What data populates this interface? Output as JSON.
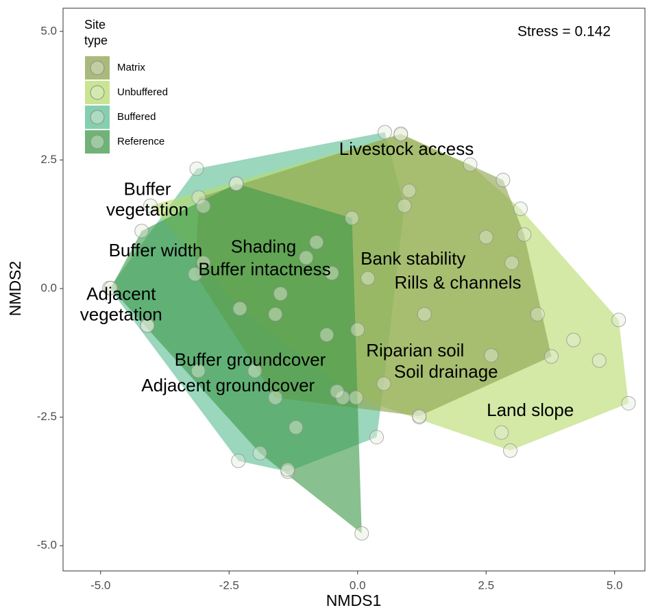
{
  "chart_data": {
    "type": "scatter",
    "x_label": "NMDS1",
    "y_label": "NMDS2",
    "stress_label": "Stress = 0.142",
    "legend_title": [
      "Site",
      "type"
    ],
    "legend_position": "top-left",
    "xlim": [
      -5.73,
      5.59
    ],
    "ylim": [
      -5.49,
      5.45
    ],
    "xticks": [
      {
        "value": -5,
        "label": "-5.0"
      },
      {
        "value": -2.5,
        "label": "-2.5"
      },
      {
        "value": 0,
        "label": "0.0"
      },
      2.5,
      {
        "value": 5,
        "label": "5.0"
      }
    ],
    "yticks": [
      {
        "value": -5,
        "label": "-5.0"
      },
      {
        "value": -2.5,
        "label": "-2.5"
      },
      {
        "value": 0,
        "label": "0.0"
      },
      2.5,
      {
        "value": 5,
        "label": "5.0"
      }
    ],
    "series": [
      {
        "name": "Buffered",
        "color": "#5cbf94",
        "x": [
          -3.13,
          0.53,
          0.91,
          0.51,
          0.37,
          -1.36,
          -2.32,
          -4.09,
          -4.83,
          -3.0,
          -1.5,
          -0.6,
          -2.0,
          0.0,
          -0.8
        ],
        "y": [
          2.33,
          3.04,
          1.61,
          -1.85,
          -2.89,
          -3.56,
          -3.35,
          -0.72,
          0.01,
          0.5,
          -0.1,
          -0.9,
          -1.6,
          -0.8,
          0.9
        ]
      },
      {
        "name": "Unbuffered",
        "color": "#b8dc6e",
        "x": [
          0.84,
          2.19,
          3.17,
          5.08,
          5.27,
          2.97,
          1.2,
          -4.03,
          -2.36,
          -2.29,
          -0.03,
          4.2,
          3.5,
          2.8,
          4.7,
          3.0
        ],
        "y": [
          2.99,
          2.41,
          1.55,
          -0.61,
          -2.23,
          -3.15,
          -2.5,
          1.61,
          2.04,
          -0.39,
          -2.12,
          -1.0,
          -0.5,
          -2.8,
          -1.4,
          0.5
        ]
      },
      {
        "name": "Matrix",
        "color": "#8da34f",
        "x": [
          0.84,
          2.83,
          3.24,
          3.77,
          1.2,
          -0.29,
          -3.09,
          -3.16,
          1.0,
          2.5,
          1.3,
          0.2,
          -1.0,
          2.6,
          -1.6
        ],
        "y": [
          3.01,
          2.11,
          1.05,
          -1.32,
          -2.48,
          -2.12,
          1.77,
          0.28,
          1.9,
          1.0,
          -0.5,
          0.2,
          0.6,
          -1.3,
          -2.12
        ]
      },
      {
        "name": "Reference",
        "color": "#3f9a4a",
        "x": [
          -2.36,
          -4.2,
          -4.8,
          -4.09,
          -1.36,
          0.08,
          -0.11,
          -1.9,
          -1.2,
          -3.1,
          -0.4,
          -1.6,
          -3.0,
          -0.5
        ],
        "y": [
          2.04,
          1.12,
          0.01,
          -0.72,
          -3.52,
          -4.76,
          1.37,
          -3.2,
          -2.7,
          -1.6,
          -2.0,
          -0.5,
          1.6,
          0.3
        ]
      }
    ],
    "legend_order": [
      2,
      1,
      0,
      3
    ],
    "annotations": [
      {
        "lines": [
          "Livestock access"
        ],
        "x": 0.95,
        "y": 2.69
      },
      {
        "lines": [
          "Buffer",
          "vegetation"
        ],
        "x": -4.09,
        "y": 1.71
      },
      {
        "lines": [
          "Buffer width"
        ],
        "x": -3.93,
        "y": 0.72
      },
      {
        "lines": [
          "Shading"
        ],
        "x": -1.83,
        "y": 0.79
      },
      {
        "lines": [
          "Buffer intactness"
        ],
        "x": -1.81,
        "y": 0.35
      },
      {
        "lines": [
          "Bank stability"
        ],
        "x": 1.08,
        "y": 0.56
      },
      {
        "lines": [
          "Rills & channels"
        ],
        "x": 1.95,
        "y": 0.09
      },
      {
        "lines": [
          "Adjacent",
          "vegetation"
        ],
        "x": -4.6,
        "y": -0.33
      },
      {
        "lines": [
          "Riparian soil"
        ],
        "x": 1.12,
        "y": -1.23
      },
      {
        "lines": [
          "Soil drainage"
        ],
        "x": 1.72,
        "y": -1.64
      },
      {
        "lines": [
          "Buffer groundcover"
        ],
        "x": -2.09,
        "y": -1.41
      },
      {
        "lines": [
          "Adjacent groundcover"
        ],
        "x": -2.52,
        "y": -1.91
      },
      {
        "lines": [
          "Land slope"
        ],
        "x": 3.36,
        "y": -2.39
      }
    ]
  }
}
